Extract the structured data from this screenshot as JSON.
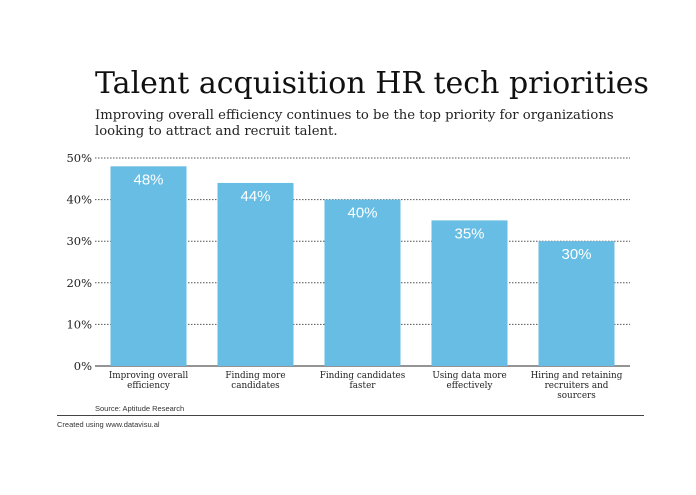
{
  "title": "Talent acquisition HR tech priorities",
  "subtitle": "Improving overall efficiency continues to be the top priority for organizations looking to attract and recruit talent.",
  "source": "Source: Aptitude Research",
  "credit": "Created using www.datavisu.al",
  "colors": {
    "bar": "#67BDE3",
    "bar_label": "#ffffff",
    "grid": "#555555",
    "text": "#222222"
  },
  "chart_data": {
    "type": "bar",
    "title": "Talent acquisition HR tech priorities",
    "xlabel": "",
    "ylabel": "",
    "categories": [
      "Improving overall efficiency",
      "Finding more candidates",
      "Finding candidates faster",
      "Using data more effectively",
      "Hiring and retaining recruiters and sourcers"
    ],
    "category_lines": [
      [
        "Improving overall",
        "efficiency"
      ],
      [
        "Finding more",
        "candidates"
      ],
      [
        "Finding candidates",
        "faster"
      ],
      [
        "Using data more",
        "effectively"
      ],
      [
        "Hiring and retaining",
        "recruiters and",
        "sourcers"
      ]
    ],
    "values": [
      48,
      44,
      40,
      35,
      30
    ],
    "value_labels": [
      "48%",
      "44%",
      "40%",
      "35%",
      "30%"
    ],
    "ylim": [
      0,
      50
    ],
    "yticks": [
      0,
      10,
      20,
      30,
      40,
      50
    ],
    "ytick_labels": [
      "0%",
      "10%",
      "20%",
      "30%",
      "40%",
      "50%"
    ],
    "grid": true,
    "legend": "none"
  }
}
